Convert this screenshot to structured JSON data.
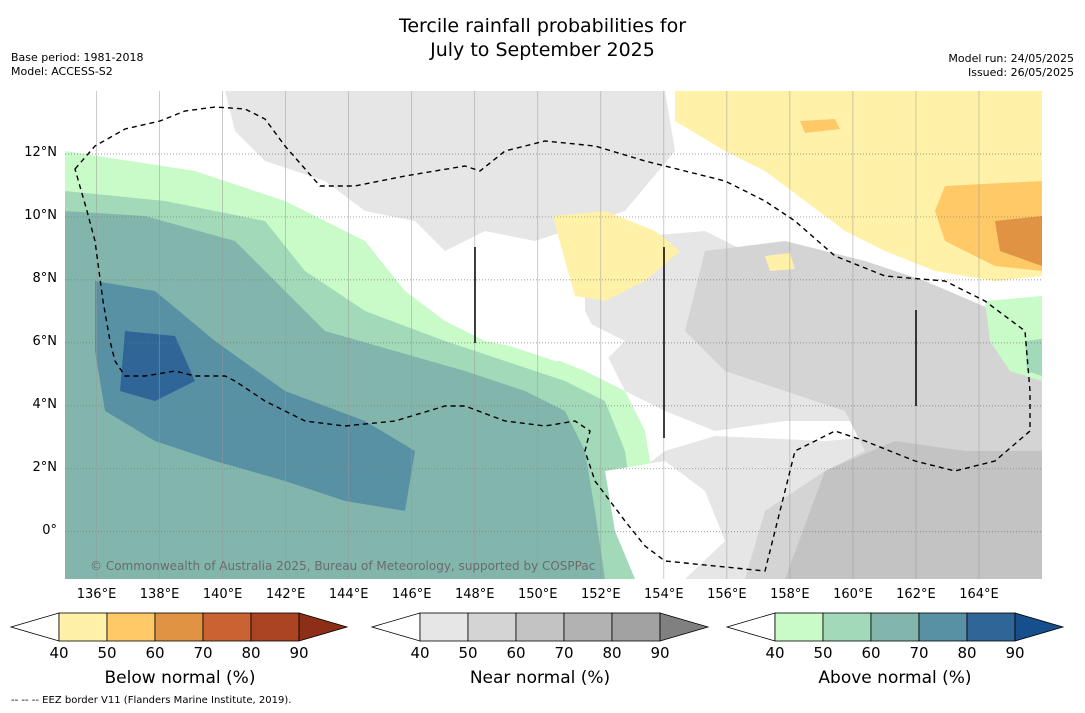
{
  "title": {
    "line1": "Tercile rainfall probabilities for",
    "line2": "July to September 2025"
  },
  "meta_left": {
    "base_period": "Base period: 1981-2018",
    "model": "Model: ACCESS-S2"
  },
  "meta_right": {
    "model_run": "Model run: 24/05/2025",
    "issued": "Issued: 26/05/2025"
  },
  "map": {
    "lon_range": [
      135,
      166
    ],
    "lat_range": [
      -1.5,
      14
    ],
    "lon_ticks": [
      "136°E",
      "138°E",
      "140°E",
      "142°E",
      "144°E",
      "146°E",
      "148°E",
      "150°E",
      "152°E",
      "154°E",
      "156°E",
      "158°E",
      "160°E",
      "162°E",
      "164°E"
    ],
    "lat_ticks": [
      "0°",
      "2°N",
      "4°N",
      "6°N",
      "8°N",
      "10°N",
      "12°N"
    ],
    "copyright": "© Commonwealth of Australia 2025, Bureau of Meteorology, supported by COSPPac"
  },
  "colorbars": [
    {
      "label": "Below normal (%)",
      "ticks": [
        "40",
        "50",
        "60",
        "70",
        "80",
        "90"
      ],
      "colors": [
        "#fff1a8",
        "#fec966",
        "#e19344",
        "#cb6232",
        "#aa4422",
        "#8c2e18"
      ]
    },
    {
      "label": "Near normal (%)",
      "ticks": [
        "40",
        "50",
        "60",
        "70",
        "80",
        "90"
      ],
      "colors": [
        "#e6e6e6",
        "#d4d4d4",
        "#c3c3c3",
        "#b2b2b2",
        "#a2a2a2",
        "#808080"
      ]
    },
    {
      "label": "Above normal (%)",
      "ticks": [
        "40",
        "50",
        "60",
        "70",
        "80",
        "90"
      ],
      "colors": [
        "#c8fbc8",
        "#a2d9b8",
        "#82b6ad",
        "#5890a4",
        "#2f6597",
        "#164f8c"
      ]
    }
  ],
  "footer": "--  --  -- EEZ border V11 (Flanders Marine Institute, 2019)."
}
